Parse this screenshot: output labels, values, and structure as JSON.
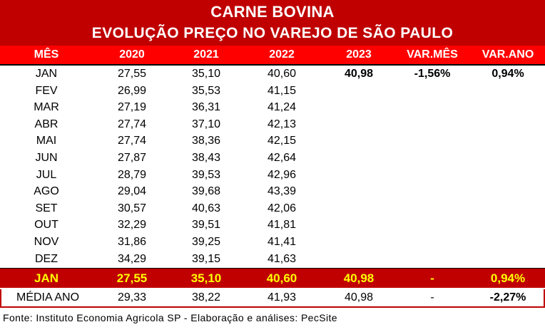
{
  "title": {
    "line1": "CARNE BOVINA",
    "line2": "EVOLUÇÃO PREÇO NO VAREJO DE SÃO PAULO"
  },
  "headers": {
    "mes": "MÊS",
    "y2020": "2020",
    "y2021": "2021",
    "y2022": "2022",
    "y2023": "2023",
    "var_mes": "VAR.MÊS",
    "var_ano": "VAR.ANO"
  },
  "rows": [
    {
      "mes": "JAN",
      "y2020": "27,55",
      "y2021": "35,10",
      "y2022": "40,60",
      "y2023": "40,98",
      "var_mes": "-1,56%",
      "var_ano": "0,94%"
    },
    {
      "mes": "FEV",
      "y2020": "26,99",
      "y2021": "35,53",
      "y2022": "41,15",
      "y2023": "",
      "var_mes": "",
      "var_ano": ""
    },
    {
      "mes": "MAR",
      "y2020": "27,19",
      "y2021": "36,31",
      "y2022": "41,24",
      "y2023": "",
      "var_mes": "",
      "var_ano": ""
    },
    {
      "mes": "ABR",
      "y2020": "27,74",
      "y2021": "37,10",
      "y2022": "42,13",
      "y2023": "",
      "var_mes": "",
      "var_ano": ""
    },
    {
      "mes": "MAI",
      "y2020": "27,74",
      "y2021": "38,36",
      "y2022": "42,15",
      "y2023": "",
      "var_mes": "",
      "var_ano": ""
    },
    {
      "mes": "JUN",
      "y2020": "27,87",
      "y2021": "38,43",
      "y2022": "42,64",
      "y2023": "",
      "var_mes": "",
      "var_ano": ""
    },
    {
      "mes": "JUL",
      "y2020": "28,79",
      "y2021": "39,53",
      "y2022": "42,96",
      "y2023": "",
      "var_mes": "",
      "var_ano": ""
    },
    {
      "mes": "AGO",
      "y2020": "29,04",
      "y2021": "39,68",
      "y2022": "43,39",
      "y2023": "",
      "var_mes": "",
      "var_ano": ""
    },
    {
      "mes": "SET",
      "y2020": "30,57",
      "y2021": "40,63",
      "y2022": "42,06",
      "y2023": "",
      "var_mes": "",
      "var_ano": ""
    },
    {
      "mes": "OUT",
      "y2020": "32,29",
      "y2021": "39,51",
      "y2022": "41,81",
      "y2023": "",
      "var_mes": "",
      "var_ano": ""
    },
    {
      "mes": "NOV",
      "y2020": "31,86",
      "y2021": "39,25",
      "y2022": "41,41",
      "y2023": "",
      "var_mes": "",
      "var_ano": ""
    },
    {
      "mes": "DEZ",
      "y2020": "34,29",
      "y2021": "39,15",
      "y2022": "41,63",
      "y2023": "",
      "var_mes": "",
      "var_ano": ""
    }
  ],
  "highlight": {
    "mes": "JAN",
    "y2020": "27,55",
    "y2021": "35,10",
    "y2022": "40,60",
    "y2023": "40,98",
    "var_mes": "-",
    "var_ano": "0,94%"
  },
  "media": {
    "mes": "MÉDIA ANO",
    "y2020": "29,33",
    "y2021": "38,22",
    "y2022": "41,93",
    "y2023": "40,98",
    "var_mes": "-",
    "var_ano": "-2,27%"
  },
  "source": "Fonte: Instituto Economia Agricola SP - Elaboração e análises: PecSite",
  "colors": {
    "title_bg": "#c00000",
    "header_bg": "#ff0000",
    "highlight_bg": "#c00000",
    "highlight_text": "#ffff00"
  }
}
